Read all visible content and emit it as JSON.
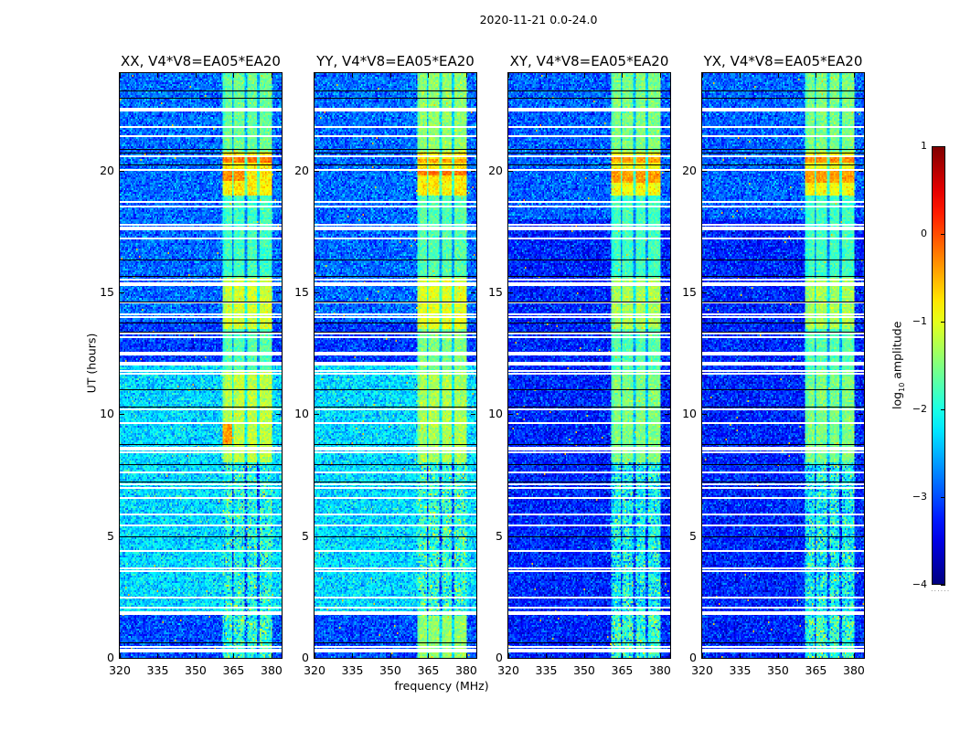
{
  "suptitle": "2020-11-21 0.0-24.0",
  "chart_data": {
    "type": "heatmap",
    "title": "2020-11-21 0.0-24.0",
    "xlabel": "frequency (MHz)",
    "ylabel": "UT (hours)",
    "xlim": [
      320,
      384
    ],
    "ylim": [
      0,
      24
    ],
    "xticks": [
      "320",
      "335",
      "350",
      "365",
      "380"
    ],
    "xtick_values": [
      320,
      335,
      350,
      365,
      380
    ],
    "yticks": [
      "0",
      "5",
      "10",
      "15",
      "20"
    ],
    "ytick_values": [
      0,
      5,
      10,
      15,
      20
    ],
    "colorbar": {
      "label_main": "log",
      "label_sub": "10",
      "label_rest": " amplitude",
      "colormap": "jet",
      "range": [
        -4,
        1
      ],
      "ticks": [
        "1",
        "0",
        "−1",
        "−2",
        "−3",
        "−4"
      ],
      "tick_values": [
        1,
        0,
        -1,
        -2,
        -3,
        -4
      ]
    },
    "rfi_band": {
      "freq": [
        360.5,
        380
      ],
      "subband_gaps": [
        364.8,
        369.8,
        374.8
      ]
    },
    "flagged_white_hours": [
      22.54,
      22.47,
      21.79,
      21.42,
      20.6,
      20.04,
      18.73,
      18.54,
      17.79,
      17.68,
      17.57,
      17.2,
      15.51,
      15.36,
      15.29,
      14.58,
      14.09,
      13.98,
      13.31,
      13.16,
      12.52,
      12.45,
      11.78,
      11.66,
      10.21,
      9.64,
      8.64,
      8.56,
      8.45,
      7.63,
      7.14,
      6.99,
      6.58,
      5.87,
      5.42,
      4.37,
      3.66,
      3.55,
      2.47,
      2.06,
      0.45,
      0.34,
      0.26
    ],
    "flagged_white_bands": [
      [
        12.0,
        12.15
      ],
      [
        1.76,
        1.91
      ]
    ],
    "black_line_hours": [
      23.29,
      22.99,
      20.9,
      20.75,
      20.26,
      16.34,
      15.66,
      14.62,
      13.76,
      13.38,
      11.03,
      10.32,
      8.79,
      7.96,
      7.25,
      4.97,
      0.64
    ],
    "panels": [
      {
        "title": "XX, V4*V8=EA05*EA20",
        "base": [
          {
            "t": [
              0,
              1.8
            ],
            "level": -3.0
          },
          {
            "t": [
              1.8,
              12
            ],
            "level": -2.3
          },
          {
            "t": [
              12,
              13.8
            ],
            "level": -3.1
          },
          {
            "t": [
              13.8,
              24
            ],
            "level": -2.85
          }
        ],
        "rfi": [
          {
            "t": [
              0,
              1.7
            ],
            "level": -1.9
          },
          {
            "t": [
              1.7,
              8
            ],
            "level": -2.0
          },
          {
            "t": [
              8,
              11.8
            ],
            "level": -1.2
          },
          {
            "t": [
              11.8,
              13.5
            ],
            "level": -1.7
          },
          {
            "t": [
              13.5,
              15.6
            ],
            "level": -1.1
          },
          {
            "t": [
              15.6,
              19
            ],
            "level": -1.8
          },
          {
            "t": [
              19,
              20.8
            ],
            "level": -0.8
          },
          {
            "t": [
              20.8,
              24
            ],
            "level": -1.6
          }
        ],
        "hot": [
          {
            "t": [
              8.8,
              9.6
            ],
            "f": [
              360.5,
              365
            ],
            "level": -0.4
          },
          {
            "t": [
              19.6,
              20.0
            ],
            "f": [
              360.5,
              370
            ],
            "level": -0.3
          },
          {
            "t": [
              20.3,
              20.6
            ],
            "f": [
              360.5,
              380
            ],
            "level": -0.2
          }
        ]
      },
      {
        "title": "YY, V4*V8=EA05*EA20",
        "base": [
          {
            "t": [
              0,
              1.8
            ],
            "level": -3.0
          },
          {
            "t": [
              1.8,
              12
            ],
            "level": -2.3
          },
          {
            "t": [
              12,
              13.8
            ],
            "level": -3.1
          },
          {
            "t": [
              13.8,
              24
            ],
            "level": -2.85
          }
        ],
        "rfi": [
          {
            "t": [
              0,
              1.7
            ],
            "level": -1.4
          },
          {
            "t": [
              1.7,
              8
            ],
            "level": -1.9
          },
          {
            "t": [
              8,
              11.8
            ],
            "level": -1.3
          },
          {
            "t": [
              11.8,
              13.5
            ],
            "level": -1.5
          },
          {
            "t": [
              13.5,
              15.6
            ],
            "level": -1.0
          },
          {
            "t": [
              15.6,
              19
            ],
            "level": -1.7
          },
          {
            "t": [
              19,
              20.8
            ],
            "level": -0.8
          },
          {
            "t": [
              20.8,
              24
            ],
            "level": -1.4
          }
        ],
        "hot": [
          {
            "t": [
              19.8,
              20.0
            ],
            "f": [
              360.5,
              380
            ],
            "level": -0.2
          },
          {
            "t": [
              20.3,
              20.5
            ],
            "f": [
              360.5,
              380
            ],
            "level": -0.4
          }
        ]
      },
      {
        "title": "XY, V4*V8=EA05*EA20",
        "base": [
          {
            "t": [
              0,
              18
            ],
            "level": -3.2
          },
          {
            "t": [
              18,
              24
            ],
            "level": -2.9
          }
        ],
        "rfi": [
          {
            "t": [
              0,
              1.7
            ],
            "level": -1.9
          },
          {
            "t": [
              1.7,
              8
            ],
            "level": -2.1
          },
          {
            "t": [
              8,
              11.8
            ],
            "level": -1.5
          },
          {
            "t": [
              11.8,
              13.5
            ],
            "level": -1.7
          },
          {
            "t": [
              13.5,
              15.6
            ],
            "level": -1.3
          },
          {
            "t": [
              15.6,
              19
            ],
            "level": -1.8
          },
          {
            "t": [
              19,
              20.8
            ],
            "level": -0.9
          },
          {
            "t": [
              20.8,
              24
            ],
            "level": -1.5
          }
        ],
        "hot": [
          {
            "t": [
              19.5,
              20.0
            ],
            "f": [
              360.5,
              380
            ],
            "level": -0.4
          },
          {
            "t": [
              20.3,
              20.6
            ],
            "f": [
              360.5,
              380
            ],
            "level": -0.4
          }
        ]
      },
      {
        "title": "YX, V4*V8=EA05*EA20",
        "base": [
          {
            "t": [
              0,
              18
            ],
            "level": -3.2
          },
          {
            "t": [
              18,
              24
            ],
            "level": -2.9
          }
        ],
        "rfi": [
          {
            "t": [
              0,
              1.7
            ],
            "level": -1.9
          },
          {
            "t": [
              1.7,
              8
            ],
            "level": -2.1
          },
          {
            "t": [
              8,
              11.8
            ],
            "level": -1.5
          },
          {
            "t": [
              11.8,
              13.5
            ],
            "level": -1.7
          },
          {
            "t": [
              13.5,
              15.6
            ],
            "level": -1.3
          },
          {
            "t": [
              15.6,
              19
            ],
            "level": -1.8
          },
          {
            "t": [
              19,
              20.8
            ],
            "level": -0.9
          },
          {
            "t": [
              20.8,
              24
            ],
            "level": -1.5
          }
        ],
        "hot": [
          {
            "t": [
              19.5,
              20.0
            ],
            "f": [
              360.5,
              380
            ],
            "level": -0.4
          },
          {
            "t": [
              20.3,
              20.6
            ],
            "f": [
              360.5,
              380
            ],
            "level": -0.3
          }
        ]
      }
    ]
  }
}
